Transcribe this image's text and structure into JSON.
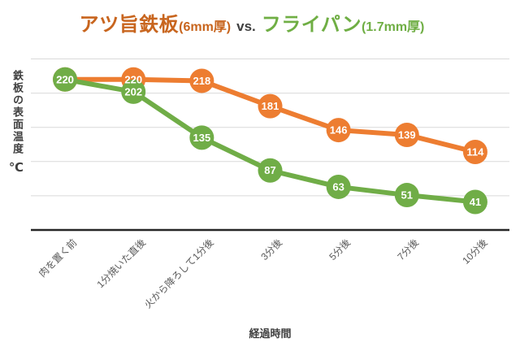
{
  "title": {
    "series1_name": "アツ旨鉄板",
    "series1_spec": "(6mm厚)",
    "separator": "vs.",
    "series2_name": "フライパン",
    "series2_spec": "(1.7mm厚)"
  },
  "axes": {
    "y_label": "鉄板の表面温度",
    "y_unit": "℃",
    "x_label": "経過時間"
  },
  "colors": {
    "series1": "#ED7D31",
    "series2": "#70AD47",
    "title_series1": "#C8651E",
    "title_series2": "#6FAE44",
    "separator_text": "#3F3F3F",
    "gridline": "#D9D9D9",
    "axis_line": "#262626",
    "tick_text": "#595959",
    "axis_title_text": "#404040",
    "value_label": "#FFFFFF"
  },
  "chart_data": {
    "type": "line",
    "title": "アツ旨鉄板(6mm厚) vs. フライパン(1.7mm厚)",
    "categories": [
      "肉を置く前",
      "1分焼いた直後",
      "火から降ろして1分後",
      "3分後",
      "5分後",
      "7分後",
      "10分後"
    ],
    "series": [
      {
        "name": "アツ旨鉄板(6mm厚)",
        "color": "#ED7D31",
        "values": [
          220,
          220,
          218,
          181,
          146,
          139,
          114
        ]
      },
      {
        "name": "フライパン(1.7mm厚)",
        "color": "#70AD47",
        "values": [
          220,
          202,
          135,
          87,
          63,
          51,
          41
        ]
      }
    ],
    "xlabel": "経過時間",
    "ylabel": "鉄板の表面温度（℃）",
    "ylim": [
      0,
      250
    ],
    "grid_step": 50,
    "grid": true,
    "legend": "none",
    "data_labels": true,
    "marker": "circle"
  }
}
